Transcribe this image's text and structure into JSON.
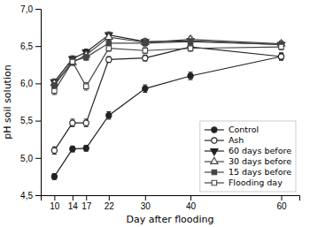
{
  "chart_data": {
    "type": "line",
    "xlabel": "Day after flooding",
    "ylabel": "pH soil solution",
    "x": [
      10,
      14,
      17,
      22,
      30,
      40,
      60
    ],
    "xlim": [
      7,
      64
    ],
    "xticks": [
      10,
      14,
      17,
      22,
      30,
      40,
      60
    ],
    "ylim": [
      4.5,
      7.0
    ],
    "yticks": [
      {
        "value": 4.5,
        "label": "4,5"
      },
      {
        "value": 5.0,
        "label": "5,0"
      },
      {
        "value": 5.5,
        "label": "5,5"
      },
      {
        "value": 6.0,
        "label": "6,0"
      },
      {
        "value": 6.5,
        "label": "6,5"
      },
      {
        "value": 7.0,
        "label": "7,0"
      }
    ],
    "grid": false,
    "legend": "lower right",
    "series": [
      {
        "name": "Control",
        "color": "#222222",
        "marker": "circle",
        "line_style": "solid",
        "values": [
          4.75,
          5.12,
          5.13,
          5.57,
          5.93,
          6.1,
          6.36
        ],
        "errors": [
          0.04,
          0.04,
          0.04,
          0.05,
          0.05,
          0.05,
          0.05
        ]
      },
      {
        "name": "Ash",
        "color": "#222222",
        "marker": "circle-open",
        "line_style": "solid",
        "values": [
          5.1,
          5.47,
          5.47,
          6.32,
          6.34,
          6.49,
          6.36
        ],
        "errors": [
          0.05,
          0.05,
          0.05,
          0.04,
          0.04,
          0.04,
          0.04
        ]
      },
      {
        "name": "60 days before",
        "color": "#222222",
        "marker": "triangle-down",
        "line_style": "solid",
        "values": [
          6.02,
          6.33,
          6.42,
          6.65,
          6.56,
          6.57,
          6.52
        ],
        "errors": [
          0.04,
          0.04,
          0.04,
          0.04,
          0.04,
          0.04,
          0.04
        ]
      },
      {
        "name": "30 days before",
        "color": "#444444",
        "marker": "triangle-up-open",
        "line_style": "solid",
        "values": [
          6.0,
          6.28,
          6.38,
          6.62,
          6.55,
          6.59,
          6.53
        ],
        "errors": [
          0.04,
          0.04,
          0.04,
          0.04,
          0.04,
          0.04,
          0.04
        ]
      },
      {
        "name": "15 days before",
        "color": "#444444",
        "marker": "square",
        "line_style": "solid",
        "values": [
          5.97,
          6.3,
          6.35,
          6.54,
          6.54,
          6.56,
          6.52
        ],
        "errors": [
          0.04,
          0.04,
          0.04,
          0.04,
          0.04,
          0.04,
          0.04
        ]
      },
      {
        "name": "Flooding day",
        "color": "#444444",
        "marker": "square-open",
        "line_style": "solid",
        "values": [
          5.9,
          6.29,
          5.96,
          6.47,
          6.44,
          6.47,
          6.49
        ],
        "errors": [
          0.05,
          0.04,
          0.05,
          0.04,
          0.04,
          0.04,
          0.04
        ]
      }
    ]
  }
}
